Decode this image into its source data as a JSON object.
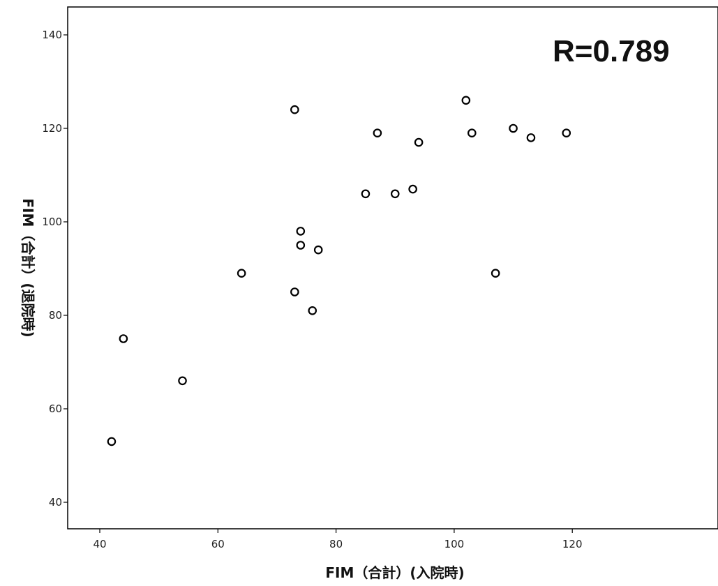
{
  "chart_data": {
    "type": "scatter",
    "xlabel": "FIM（合計）(入院時)",
    "ylabel": "FIM（合計）(退院時)",
    "annotation": "R=0.789",
    "xlim": [
      35,
      124
    ],
    "ylim": [
      35,
      145
    ],
    "x_ticks": [
      40,
      60,
      80,
      100,
      120
    ],
    "y_ticks": [
      40,
      60,
      80,
      100,
      120,
      140
    ],
    "points": [
      {
        "x": 42,
        "y": 53
      },
      {
        "x": 44,
        "y": 75
      },
      {
        "x": 54,
        "y": 66
      },
      {
        "x": 64,
        "y": 89
      },
      {
        "x": 73,
        "y": 124
      },
      {
        "x": 73,
        "y": 85
      },
      {
        "x": 74,
        "y": 98
      },
      {
        "x": 74,
        "y": 95
      },
      {
        "x": 76,
        "y": 81
      },
      {
        "x": 77,
        "y": 94
      },
      {
        "x": 85,
        "y": 106
      },
      {
        "x": 87,
        "y": 119
      },
      {
        "x": 90,
        "y": 106
      },
      {
        "x": 93,
        "y": 107
      },
      {
        "x": 94,
        "y": 117
      },
      {
        "x": 102,
        "y": 126
      },
      {
        "x": 103,
        "y": 119
      },
      {
        "x": 107,
        "y": 89
      },
      {
        "x": 110,
        "y": 120
      },
      {
        "x": 113,
        "y": 118
      },
      {
        "x": 119,
        "y": 119
      }
    ],
    "marker": "open-circle",
    "grid": false
  }
}
